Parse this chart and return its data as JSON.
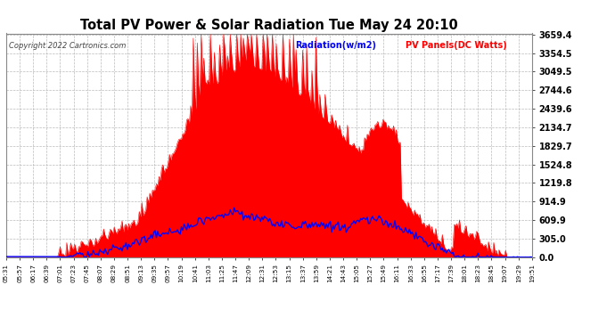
{
  "title": "Total PV Power & Solar Radiation Tue May 24 20:10",
  "copyright": "Copyright 2022 Cartronics.com",
  "legend_radiation": "Radiation(w/m2)",
  "legend_pv": "PV Panels(DC Watts)",
  "background_color": "#ffffff",
  "plot_bg_color": "#ffffff",
  "grid_color": "#aaaaaa",
  "title_color": "#000000",
  "copyright_color": "#000000",
  "radiation_color": "#0000ff",
  "pv_color": "#ff0000",
  "pv_fill_color": "#ff0000",
  "y_max": 3659.4,
  "y_min": 0.0,
  "y_ticks": [
    0.0,
    305.0,
    609.9,
    914.9,
    1219.8,
    1524.8,
    1829.7,
    2134.7,
    2439.6,
    2744.6,
    3049.5,
    3354.5,
    3659.4
  ],
  "x_labels": [
    "05:31",
    "05:57",
    "06:17",
    "06:39",
    "07:01",
    "07:23",
    "07:45",
    "08:07",
    "08:29",
    "08:51",
    "09:13",
    "09:35",
    "09:57",
    "10:19",
    "10:41",
    "11:03",
    "11:25",
    "11:47",
    "12:09",
    "12:31",
    "12:53",
    "13:15",
    "13:37",
    "13:59",
    "14:21",
    "14:43",
    "15:05",
    "15:27",
    "15:49",
    "16:11",
    "16:33",
    "16:55",
    "17:17",
    "17:39",
    "18:01",
    "18:23",
    "18:45",
    "19:07",
    "19:29",
    "19:51"
  ],
  "n_points": 400
}
